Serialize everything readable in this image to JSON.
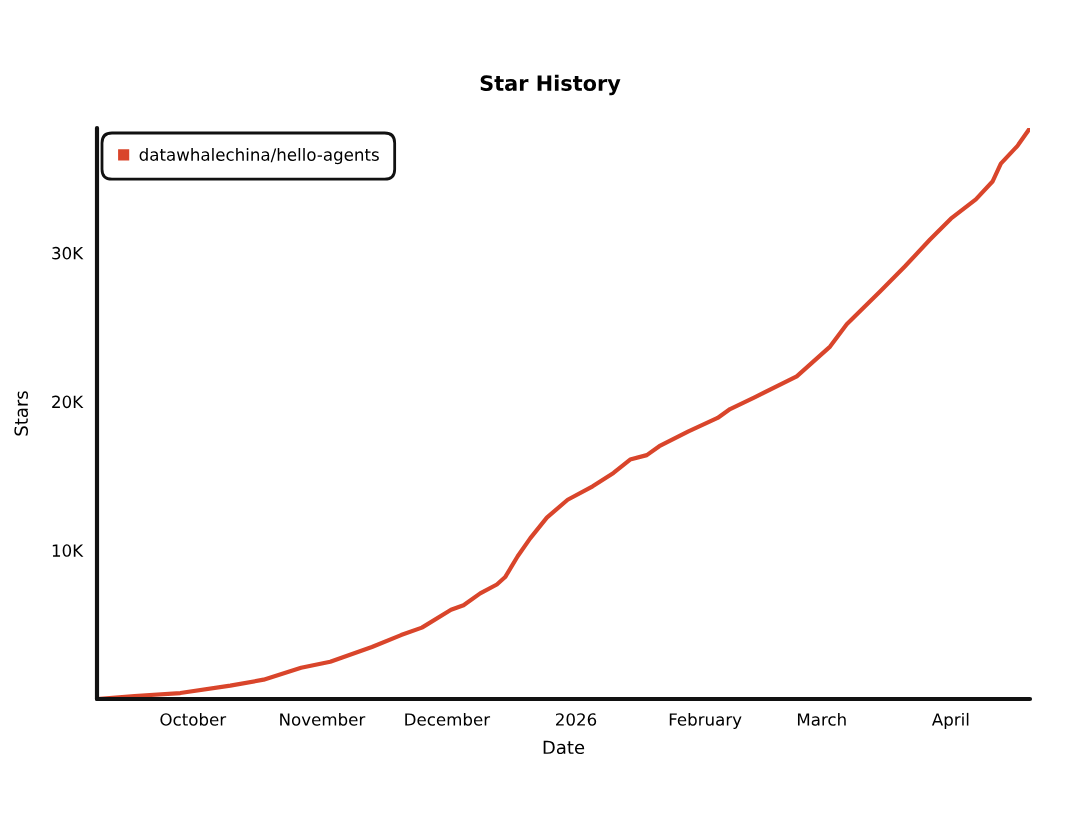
{
  "chart_data": {
    "type": "line",
    "title": "Star History",
    "xlabel": "Date",
    "ylabel": "Stars",
    "x": [
      "2025-09-08",
      "2025-09-17",
      "2025-09-28",
      "2025-10-10",
      "2025-10-18",
      "2025-10-27",
      "2025-11-03",
      "2025-11-13",
      "2025-11-20",
      "2025-11-25",
      "2025-12-02",
      "2025-12-05",
      "2025-12-09",
      "2025-12-13",
      "2025-12-15",
      "2025-12-18",
      "2025-12-21",
      "2025-12-25",
      "2025-12-30",
      "2026-01-05",
      "2026-01-10",
      "2026-01-14",
      "2026-01-18",
      "2026-01-21",
      "2026-01-28",
      "2026-02-04",
      "2026-02-07",
      "2026-02-13",
      "2026-02-23",
      "2026-03-03",
      "2026-03-07",
      "2026-03-15",
      "2026-03-21",
      "2026-03-27",
      "2026-04-01",
      "2026-04-07",
      "2026-04-11",
      "2026-04-13",
      "2026-04-17",
      "2026-04-20"
    ],
    "series": [
      {
        "name": "datawhalechina/hello-agents",
        "color": "#d9452b",
        "values": [
          0,
          200,
          400,
          900,
          1300,
          2100,
          2500,
          3500,
          4300,
          4800,
          6000,
          6300,
          7100,
          7700,
          8200,
          9600,
          10800,
          12200,
          13400,
          14300,
          15200,
          16100,
          16400,
          17000,
          18000,
          18900,
          19500,
          20300,
          21700,
          23700,
          25200,
          27400,
          29100,
          30900,
          32300,
          33600,
          34800,
          36000,
          37200,
          38400
        ]
      }
    ],
    "xlim": [
      "2025-09-08",
      "2026-04-20"
    ],
    "ylim": [
      0,
      38400
    ],
    "xticks": [
      {
        "value": "2025-10-01",
        "label": "October"
      },
      {
        "value": "2025-11-01",
        "label": "November"
      },
      {
        "value": "2025-12-01",
        "label": "December"
      },
      {
        "value": "2026-01-01",
        "label": "2026"
      },
      {
        "value": "2026-02-01",
        "label": "February"
      },
      {
        "value": "2026-03-01",
        "label": "March"
      },
      {
        "value": "2026-04-01",
        "label": "April"
      }
    ],
    "yticks": [
      {
        "value": 10000,
        "label": "10K"
      },
      {
        "value": 20000,
        "label": "20K"
      },
      {
        "value": 30000,
        "label": "30K"
      }
    ],
    "legend": "top left"
  }
}
